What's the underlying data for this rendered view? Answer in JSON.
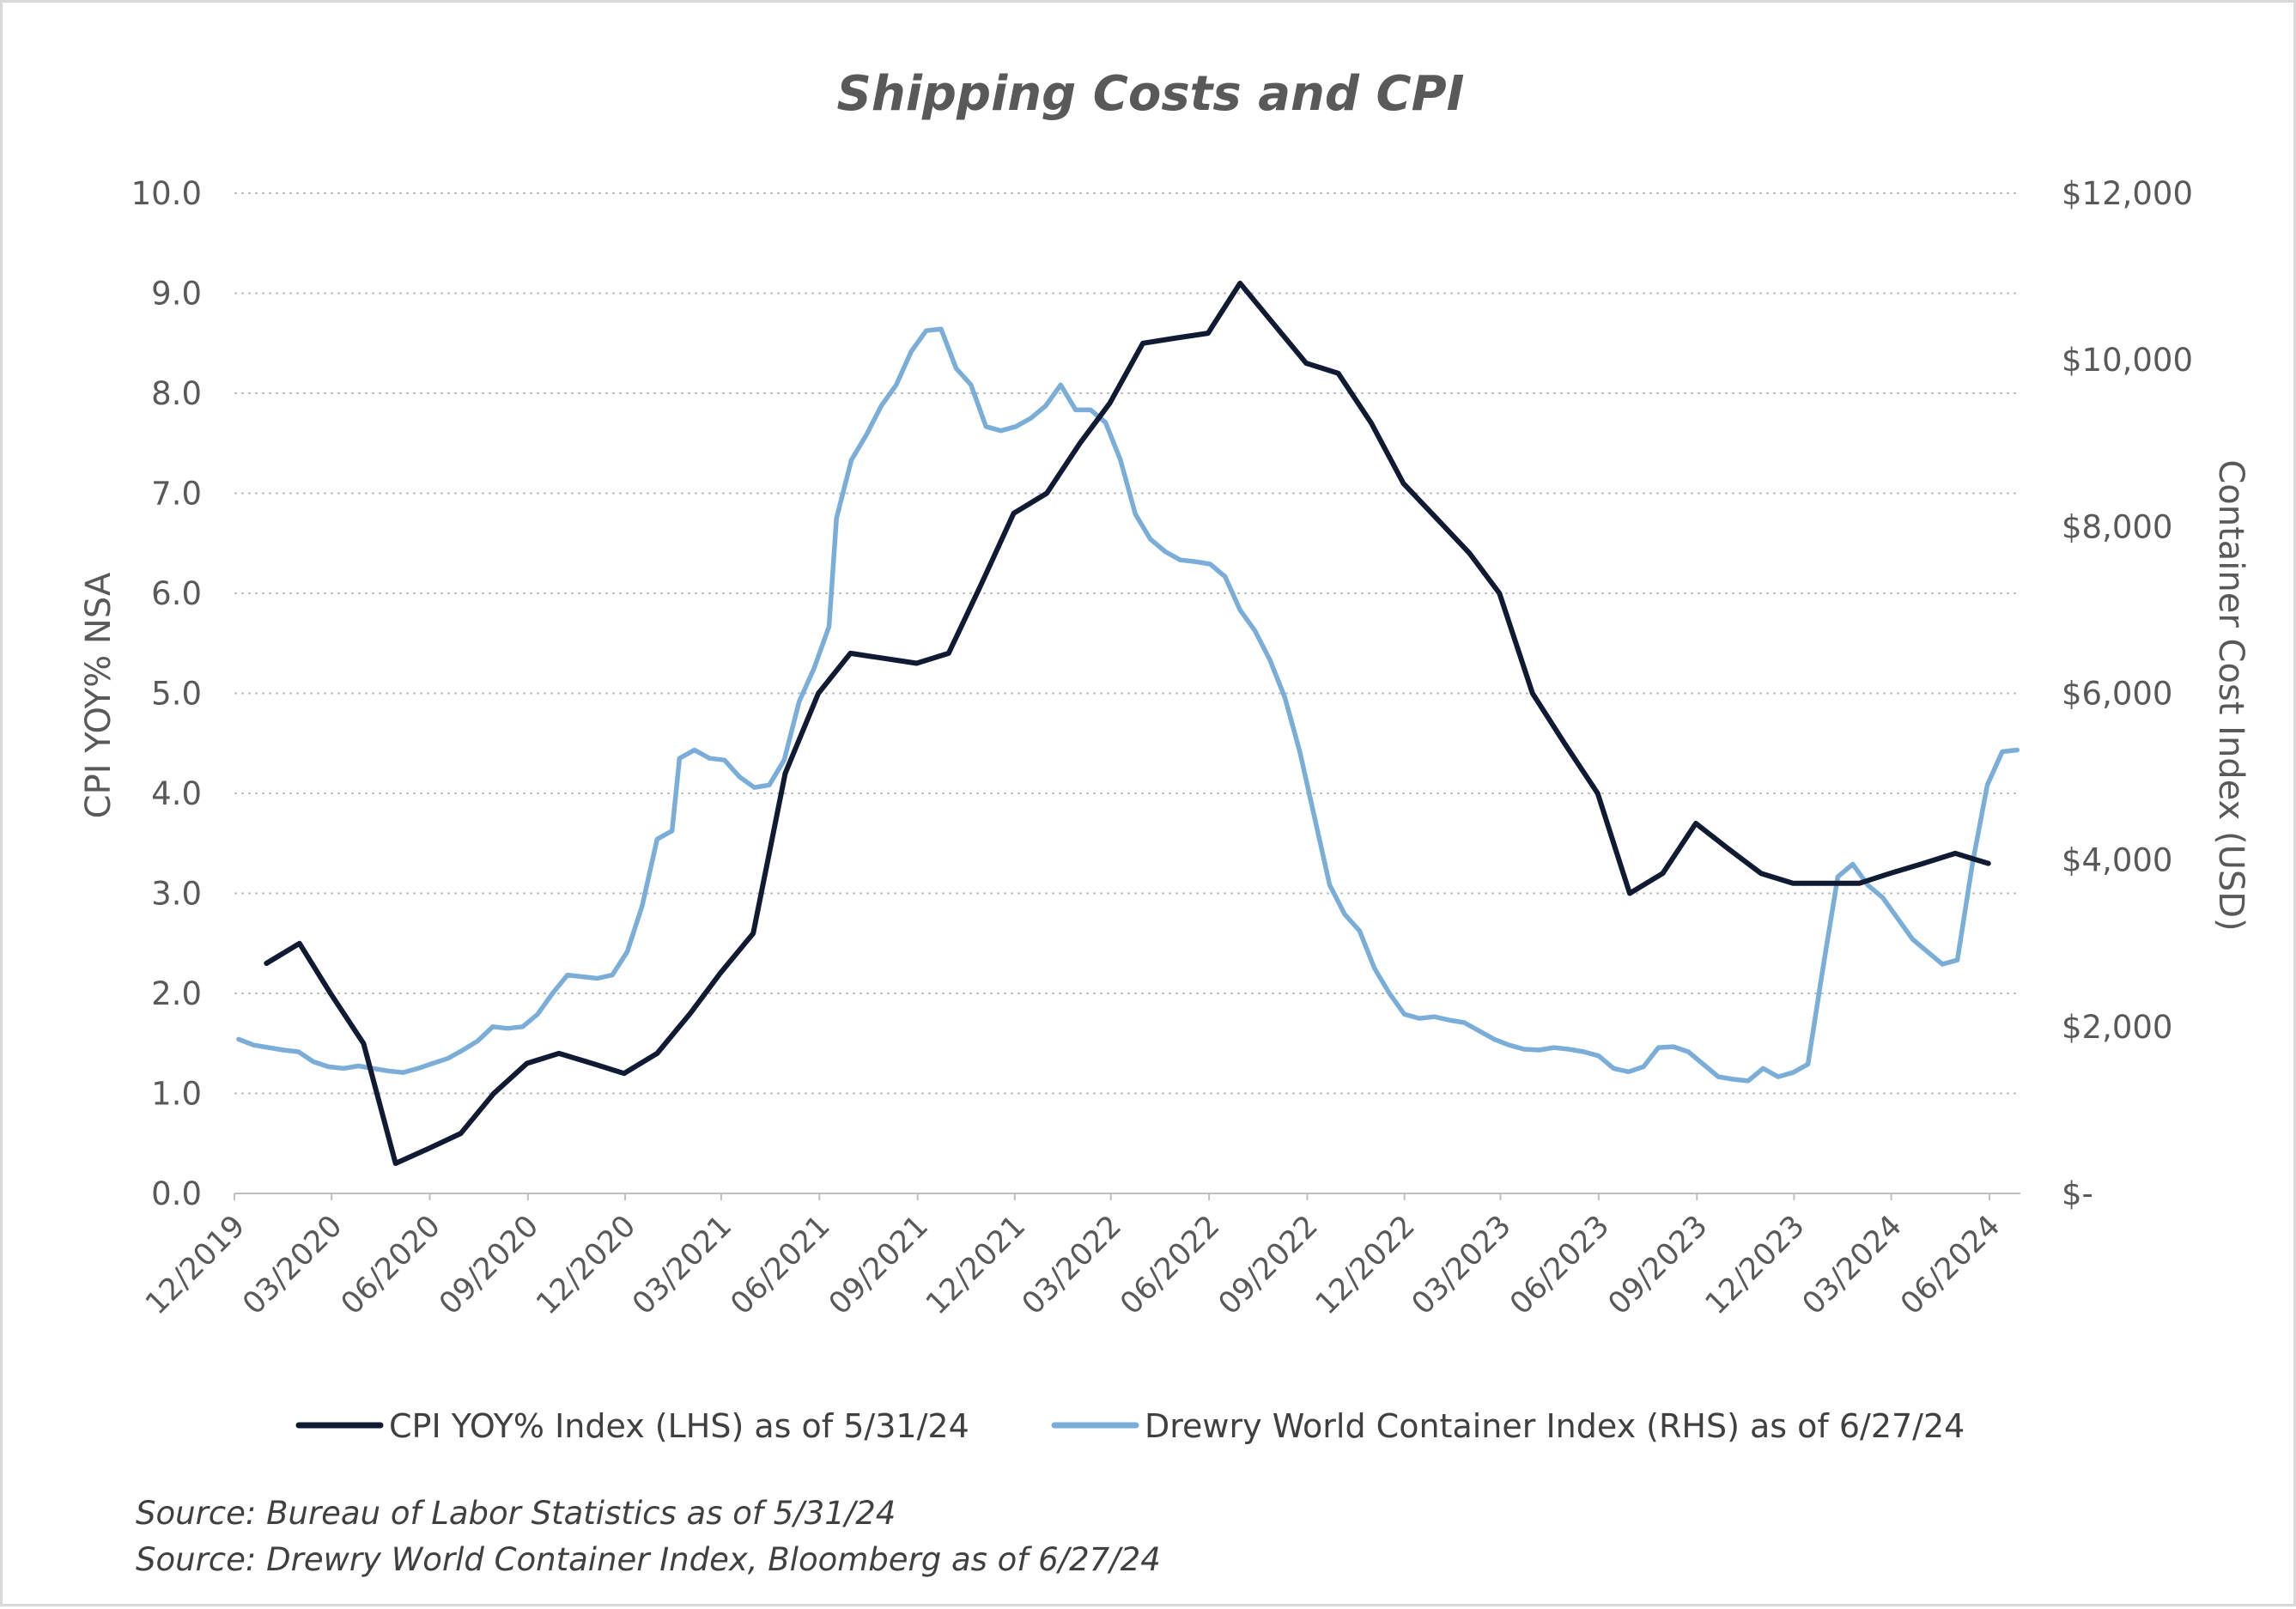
{
  "colors": {
    "cpi": "#111a33",
    "drewry": "#7aaed8",
    "grid": "#bfbfbf",
    "text": "#595959",
    "border": "#d9d9d9"
  },
  "chart_data": {
    "type": "line",
    "title": "Shipping Costs and CPI",
    "ylabel": "CPI YOY% NSA",
    "y2label": "Container Cost Index (USD)",
    "ylim": [
      0,
      10
    ],
    "y2lim": [
      0,
      12000
    ],
    "grid": true,
    "legend_position": "bottom",
    "y_ticks": [
      "0.0",
      "1.0",
      "2.0",
      "3.0",
      "4.0",
      "5.0",
      "6.0",
      "7.0",
      "8.0",
      "9.0",
      "10.0"
    ],
    "y2_ticks": [
      "$-",
      "$2,000",
      "$4,000",
      "$6,000",
      "$8,000",
      "$10,000",
      "$12,000"
    ],
    "x_ticks": [
      "12/2019",
      "03/2020",
      "06/2020",
      "09/2020",
      "12/2020",
      "03/2021",
      "06/2021",
      "09/2021",
      "12/2021",
      "03/2022",
      "06/2022",
      "09/2022",
      "12/2022",
      "03/2023",
      "06/2023",
      "09/2023",
      "12/2023",
      "03/2024",
      "06/2024"
    ],
    "x_range": [
      "2019-12-01",
      "2024-06-30"
    ],
    "series": [
      {
        "name": "CPI YOY% Index (LHS) as of 5/31/24",
        "axis": "left",
        "points": [
          [
            "2019-12-31",
            2.3
          ],
          [
            "2020-01-31",
            2.5
          ],
          [
            "2020-02-29",
            2.0
          ],
          [
            "2020-03-31",
            1.5
          ],
          [
            "2020-04-30",
            0.3
          ],
          [
            "2020-05-31",
            0.45
          ],
          [
            "2020-06-30",
            0.6
          ],
          [
            "2020-07-31",
            1.0
          ],
          [
            "2020-08-31",
            1.3
          ],
          [
            "2020-09-30",
            1.4
          ],
          [
            "2020-10-31",
            1.3
          ],
          [
            "2020-11-30",
            1.2
          ],
          [
            "2020-12-31",
            1.4
          ],
          [
            "2021-01-31",
            1.8
          ],
          [
            "2021-02-28",
            2.2
          ],
          [
            "2021-03-31",
            2.6
          ],
          [
            "2021-04-30",
            4.2
          ],
          [
            "2021-05-31",
            5.0
          ],
          [
            "2021-06-30",
            5.4
          ],
          [
            "2021-07-31",
            5.35
          ],
          [
            "2021-08-31",
            5.3
          ],
          [
            "2021-09-30",
            5.4
          ],
          [
            "2021-10-31",
            6.1
          ],
          [
            "2021-11-30",
            6.8
          ],
          [
            "2021-12-31",
            7.0
          ],
          [
            "2022-01-31",
            7.5
          ],
          [
            "2022-02-28",
            7.9
          ],
          [
            "2022-03-31",
            8.5
          ],
          [
            "2022-04-30",
            8.55
          ],
          [
            "2022-05-31",
            8.6
          ],
          [
            "2022-06-30",
            9.1
          ],
          [
            "2022-07-31",
            8.7
          ],
          [
            "2022-08-31",
            8.3
          ],
          [
            "2022-09-30",
            8.2
          ],
          [
            "2022-10-31",
            7.7
          ],
          [
            "2022-11-30",
            7.1
          ],
          [
            "2022-12-31",
            6.75
          ],
          [
            "2023-01-31",
            6.4
          ],
          [
            "2023-02-28",
            6.0
          ],
          [
            "2023-03-31",
            5.0
          ],
          [
            "2023-04-30",
            4.5
          ],
          [
            "2023-05-31",
            4.0
          ],
          [
            "2023-06-30",
            3.0
          ],
          [
            "2023-07-31",
            3.2
          ],
          [
            "2023-08-31",
            3.7
          ],
          [
            "2023-09-30",
            3.45
          ],
          [
            "2023-10-31",
            3.2
          ],
          [
            "2023-11-30",
            3.1
          ],
          [
            "2023-12-31",
            3.1
          ],
          [
            "2024-01-31",
            3.1
          ],
          [
            "2024-02-29",
            3.2
          ],
          [
            "2024-03-31",
            3.3
          ],
          [
            "2024-04-30",
            3.4
          ],
          [
            "2024-05-31",
            3.3
          ]
        ]
      },
      {
        "name": "Drewry World Container Index (RHS) as of 6/27/24",
        "axis": "right",
        "points": [
          [
            "2019-12-05",
            1850
          ],
          [
            "2019-12-19",
            1780
          ],
          [
            "2020-01-02",
            1750
          ],
          [
            "2020-01-16",
            1720
          ],
          [
            "2020-01-30",
            1700
          ],
          [
            "2020-02-13",
            1580
          ],
          [
            "2020-02-27",
            1520
          ],
          [
            "2020-03-12",
            1500
          ],
          [
            "2020-03-26",
            1530
          ],
          [
            "2020-04-09",
            1500
          ],
          [
            "2020-04-23",
            1470
          ],
          [
            "2020-05-07",
            1450
          ],
          [
            "2020-05-21",
            1500
          ],
          [
            "2020-06-04",
            1560
          ],
          [
            "2020-06-18",
            1620
          ],
          [
            "2020-07-02",
            1720
          ],
          [
            "2020-07-16",
            1830
          ],
          [
            "2020-07-30",
            2000
          ],
          [
            "2020-08-13",
            1980
          ],
          [
            "2020-08-27",
            2000
          ],
          [
            "2020-09-10",
            2150
          ],
          [
            "2020-09-24",
            2400
          ],
          [
            "2020-10-08",
            2620
          ],
          [
            "2020-10-22",
            2600
          ],
          [
            "2020-11-05",
            2580
          ],
          [
            "2020-11-19",
            2620
          ],
          [
            "2020-12-03",
            2900
          ],
          [
            "2020-12-17",
            3450
          ],
          [
            "2020-12-31",
            4250
          ],
          [
            "2021-01-14",
            4350
          ],
          [
            "2021-01-21",
            5220
          ],
          [
            "2021-02-04",
            5320
          ],
          [
            "2021-02-18",
            5220
          ],
          [
            "2021-03-04",
            5200
          ],
          [
            "2021-03-18",
            5000
          ],
          [
            "2021-04-01",
            4870
          ],
          [
            "2021-04-15",
            4900
          ],
          [
            "2021-04-29",
            5200
          ],
          [
            "2021-05-13",
            5900
          ],
          [
            "2021-05-27",
            6300
          ],
          [
            "2021-06-10",
            6800
          ],
          [
            "2021-06-17",
            8100
          ],
          [
            "2021-07-01",
            8800
          ],
          [
            "2021-07-15",
            9100
          ],
          [
            "2021-07-29",
            9450
          ],
          [
            "2021-08-12",
            9700
          ],
          [
            "2021-08-26",
            10100
          ],
          [
            "2021-09-09",
            10350
          ],
          [
            "2021-09-23",
            10370
          ],
          [
            "2021-10-07",
            9900
          ],
          [
            "2021-10-21",
            9700
          ],
          [
            "2021-11-04",
            9200
          ],
          [
            "2021-11-18",
            9150
          ],
          [
            "2021-12-02",
            9200
          ],
          [
            "2021-12-16",
            9300
          ],
          [
            "2021-12-30",
            9450
          ],
          [
            "2022-01-13",
            9700
          ],
          [
            "2022-01-27",
            9400
          ],
          [
            "2022-02-10",
            9400
          ],
          [
            "2022-02-24",
            9250
          ],
          [
            "2022-03-10",
            8800
          ],
          [
            "2022-03-24",
            8150
          ],
          [
            "2022-04-07",
            7850
          ],
          [
            "2022-04-21",
            7700
          ],
          [
            "2022-05-05",
            7600
          ],
          [
            "2022-05-19",
            7580
          ],
          [
            "2022-06-02",
            7550
          ],
          [
            "2022-06-16",
            7400
          ],
          [
            "2022-06-30",
            7000
          ],
          [
            "2022-07-14",
            6750
          ],
          [
            "2022-07-28",
            6400
          ],
          [
            "2022-08-11",
            5950
          ],
          [
            "2022-08-25",
            5300
          ],
          [
            "2022-09-08",
            4500
          ],
          [
            "2022-09-22",
            3700
          ],
          [
            "2022-10-06",
            3350
          ],
          [
            "2022-10-20",
            3150
          ],
          [
            "2022-11-03",
            2700
          ],
          [
            "2022-11-17",
            2400
          ],
          [
            "2022-12-01",
            2150
          ],
          [
            "2022-12-15",
            2100
          ],
          [
            "2022-12-29",
            2120
          ],
          [
            "2023-01-12",
            2080
          ],
          [
            "2023-01-26",
            2050
          ],
          [
            "2023-02-09",
            1950
          ],
          [
            "2023-02-23",
            1850
          ],
          [
            "2023-03-09",
            1780
          ],
          [
            "2023-03-23",
            1730
          ],
          [
            "2023-04-06",
            1720
          ],
          [
            "2023-04-20",
            1750
          ],
          [
            "2023-05-04",
            1730
          ],
          [
            "2023-05-18",
            1700
          ],
          [
            "2023-06-01",
            1650
          ],
          [
            "2023-06-15",
            1500
          ],
          [
            "2023-06-29",
            1460
          ],
          [
            "2023-07-13",
            1520
          ],
          [
            "2023-07-27",
            1750
          ],
          [
            "2023-08-10",
            1760
          ],
          [
            "2023-08-24",
            1700
          ],
          [
            "2023-09-07",
            1550
          ],
          [
            "2023-09-21",
            1400
          ],
          [
            "2023-10-05",
            1370
          ],
          [
            "2023-10-19",
            1350
          ],
          [
            "2023-11-02",
            1500
          ],
          [
            "2023-11-16",
            1400
          ],
          [
            "2023-11-30",
            1450
          ],
          [
            "2023-12-14",
            1550
          ],
          [
            "2023-12-28",
            2700
          ],
          [
            "2024-01-11",
            3800
          ],
          [
            "2024-01-25",
            3950
          ],
          [
            "2024-02-08",
            3700
          ],
          [
            "2024-02-22",
            3550
          ],
          [
            "2024-03-07",
            3300
          ],
          [
            "2024-03-21",
            3050
          ],
          [
            "2024-04-04",
            2900
          ],
          [
            "2024-04-18",
            2750
          ],
          [
            "2024-05-02",
            2800
          ],
          [
            "2024-05-16",
            3950
          ],
          [
            "2024-05-30",
            4900
          ],
          [
            "2024-06-13",
            5300
          ],
          [
            "2024-06-27",
            5320
          ]
        ]
      }
    ]
  },
  "legend": {
    "cpi_label": "CPI YOY% Index (LHS) as of 5/31/24",
    "drewry_label": "Drewry World Container Index (RHS) as of 6/27/24"
  },
  "sources": {
    "line1": "Source: Bureau of Labor Statistics as of 5/31/24",
    "line2": "Source: Drewry World Container Index, Bloomberg as of 6/27/24"
  }
}
